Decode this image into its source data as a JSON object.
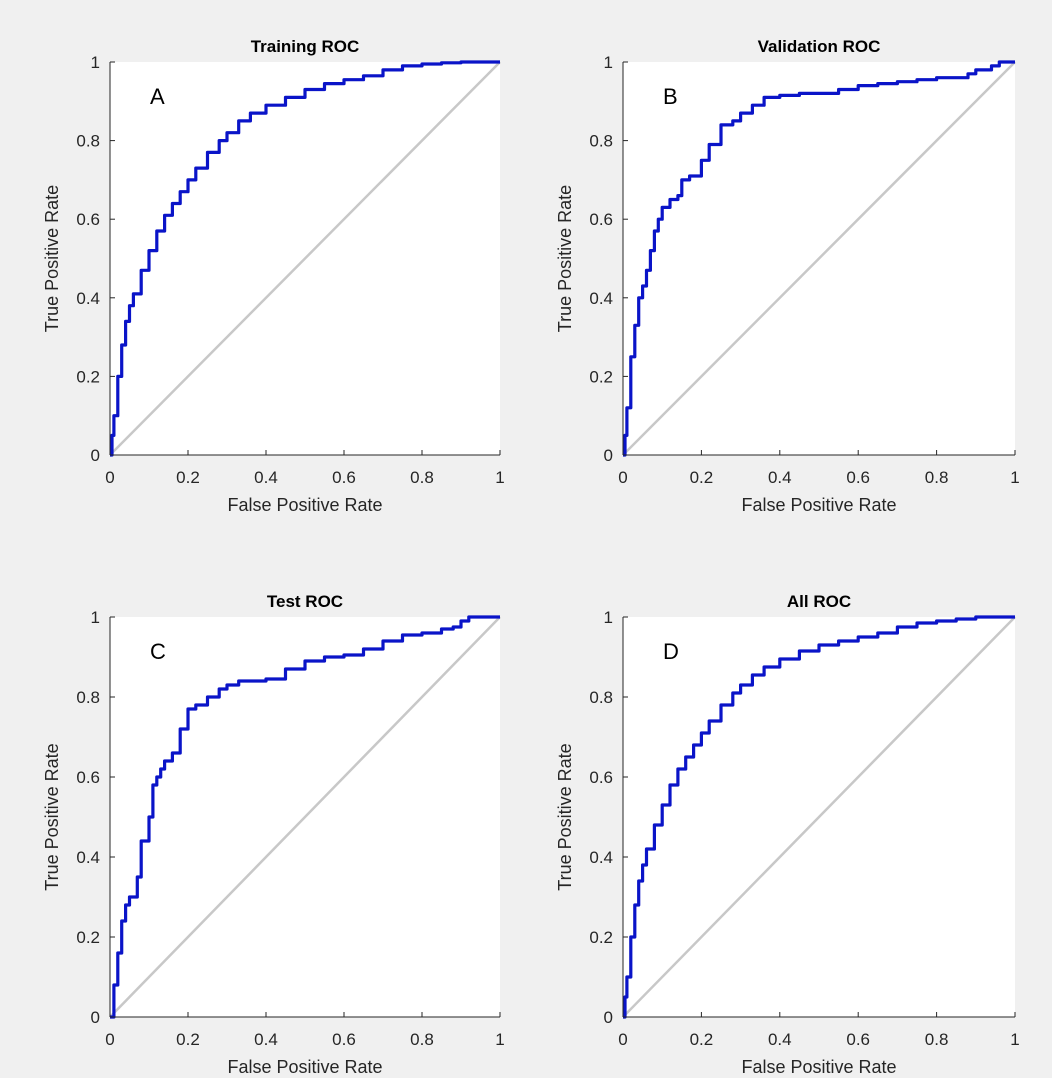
{
  "colors": {
    "background": "#f0f0f0",
    "axes_face": "#ffffff",
    "roc_curve": "#0a14c8",
    "diagonal": "#c8c8c8",
    "axis_text": "#262626"
  },
  "chart_data": [
    {
      "type": "line",
      "title": "Training ROC",
      "panel_label": "A",
      "xlabel": "False Positive Rate",
      "ylabel": "True Positive Rate",
      "xlim": [
        0,
        1
      ],
      "ylim": [
        0,
        1
      ],
      "xticks": [
        "0",
        "0.2",
        "0.4",
        "0.6",
        "0.8",
        "1"
      ],
      "yticks": [
        "0",
        "0.2",
        "0.4",
        "0.6",
        "0.8",
        "1"
      ],
      "grid": false,
      "series": [
        {
          "x": [
            0,
            0.005,
            0.01,
            0.02,
            0.03,
            0.04,
            0.05,
            0.06,
            0.08,
            0.1,
            0.12,
            0.14,
            0.16,
            0.18,
            0.2,
            0.22,
            0.25,
            0.28,
            0.3,
            0.33,
            0.36,
            0.4,
            0.45,
            0.5,
            0.55,
            0.6,
            0.65,
            0.7,
            0.75,
            0.8,
            0.85,
            0.9,
            0.95,
            1
          ],
          "y": [
            0,
            0.05,
            0.1,
            0.2,
            0.28,
            0.34,
            0.38,
            0.41,
            0.47,
            0.52,
            0.57,
            0.61,
            0.64,
            0.67,
            0.7,
            0.73,
            0.77,
            0.8,
            0.82,
            0.85,
            0.87,
            0.89,
            0.91,
            0.93,
            0.945,
            0.955,
            0.965,
            0.98,
            0.99,
            0.995,
            0.998,
            1,
            1,
            1
          ]
        },
        {
          "x": [
            0,
            1
          ],
          "y": [
            0,
            1
          ]
        }
      ]
    },
    {
      "type": "line",
      "title": "Validation ROC",
      "panel_label": "B",
      "xlabel": "False Positive Rate",
      "ylabel": "True Positive Rate",
      "xlim": [
        0,
        1
      ],
      "ylim": [
        0,
        1
      ],
      "xticks": [
        "0",
        "0.2",
        "0.4",
        "0.6",
        "0.8",
        "1"
      ],
      "yticks": [
        "0",
        "0.2",
        "0.4",
        "0.6",
        "0.8",
        "1"
      ],
      "grid": false,
      "series": [
        {
          "x": [
            0,
            0.005,
            0.01,
            0.02,
            0.03,
            0.04,
            0.05,
            0.06,
            0.07,
            0.08,
            0.09,
            0.1,
            0.12,
            0.13,
            0.14,
            0.15,
            0.16,
            0.17,
            0.18,
            0.2,
            0.22,
            0.25,
            0.28,
            0.3,
            0.33,
            0.36,
            0.4,
            0.45,
            0.5,
            0.55,
            0.6,
            0.65,
            0.7,
            0.75,
            0.8,
            0.85,
            0.88,
            0.9,
            0.92,
            0.94,
            0.96,
            1
          ],
          "y": [
            0,
            0.05,
            0.12,
            0.25,
            0.33,
            0.4,
            0.43,
            0.47,
            0.52,
            0.57,
            0.6,
            0.63,
            0.65,
            0.65,
            0.66,
            0.7,
            0.7,
            0.71,
            0.71,
            0.75,
            0.79,
            0.84,
            0.85,
            0.87,
            0.89,
            0.91,
            0.915,
            0.92,
            0.92,
            0.93,
            0.94,
            0.945,
            0.95,
            0.955,
            0.96,
            0.96,
            0.97,
            0.98,
            0.98,
            0.99,
            1,
            1
          ]
        },
        {
          "x": [
            0,
            1
          ],
          "y": [
            0,
            1
          ]
        }
      ]
    },
    {
      "type": "line",
      "title": "Test ROC",
      "panel_label": "C",
      "xlabel": "False Positive Rate",
      "ylabel": "True Positive Rate",
      "xlim": [
        0,
        1
      ],
      "ylim": [
        0,
        1
      ],
      "xticks": [
        "0",
        "0.2",
        "0.4",
        "0.6",
        "0.8",
        "1"
      ],
      "yticks": [
        "0",
        "0.2",
        "0.4",
        "0.6",
        "0.8",
        "1"
      ],
      "grid": false,
      "series": [
        {
          "x": [
            0,
            0.01,
            0.02,
            0.03,
            0.04,
            0.05,
            0.06,
            0.07,
            0.08,
            0.1,
            0.11,
            0.12,
            0.13,
            0.14,
            0.16,
            0.18,
            0.2,
            0.22,
            0.25,
            0.28,
            0.3,
            0.33,
            0.36,
            0.4,
            0.45,
            0.5,
            0.55,
            0.6,
            0.65,
            0.7,
            0.75,
            0.8,
            0.85,
            0.88,
            0.9,
            0.92,
            0.95,
            1
          ],
          "y": [
            0,
            0.08,
            0.16,
            0.24,
            0.28,
            0.3,
            0.3,
            0.35,
            0.44,
            0.5,
            0.58,
            0.6,
            0.62,
            0.64,
            0.66,
            0.72,
            0.77,
            0.78,
            0.8,
            0.82,
            0.83,
            0.84,
            0.84,
            0.845,
            0.87,
            0.89,
            0.9,
            0.905,
            0.92,
            0.94,
            0.955,
            0.96,
            0.97,
            0.975,
            0.99,
            1,
            1,
            1
          ]
        },
        {
          "x": [
            0,
            1
          ],
          "y": [
            0,
            1
          ]
        }
      ]
    },
    {
      "type": "line",
      "title": "All ROC",
      "panel_label": "D",
      "xlabel": "False Positive Rate",
      "ylabel": "True Positive Rate",
      "xlim": [
        0,
        1
      ],
      "ylim": [
        0,
        1
      ],
      "xticks": [
        "0",
        "0.2",
        "0.4",
        "0.6",
        "0.8",
        "1"
      ],
      "yticks": [
        "0",
        "0.2",
        "0.4",
        "0.6",
        "0.8",
        "1"
      ],
      "grid": false,
      "series": [
        {
          "x": [
            0,
            0.005,
            0.01,
            0.02,
            0.03,
            0.04,
            0.05,
            0.06,
            0.08,
            0.1,
            0.12,
            0.14,
            0.16,
            0.18,
            0.2,
            0.22,
            0.25,
            0.28,
            0.3,
            0.33,
            0.36,
            0.4,
            0.45,
            0.5,
            0.55,
            0.6,
            0.65,
            0.7,
            0.75,
            0.8,
            0.85,
            0.9,
            0.95,
            1
          ],
          "y": [
            0,
            0.05,
            0.1,
            0.2,
            0.28,
            0.34,
            0.38,
            0.42,
            0.48,
            0.53,
            0.58,
            0.62,
            0.65,
            0.68,
            0.71,
            0.74,
            0.78,
            0.81,
            0.83,
            0.855,
            0.875,
            0.895,
            0.915,
            0.93,
            0.94,
            0.95,
            0.96,
            0.975,
            0.985,
            0.99,
            0.995,
            1,
            1,
            1
          ]
        },
        {
          "x": [
            0,
            1
          ],
          "y": [
            0,
            1
          ]
        }
      ]
    }
  ]
}
